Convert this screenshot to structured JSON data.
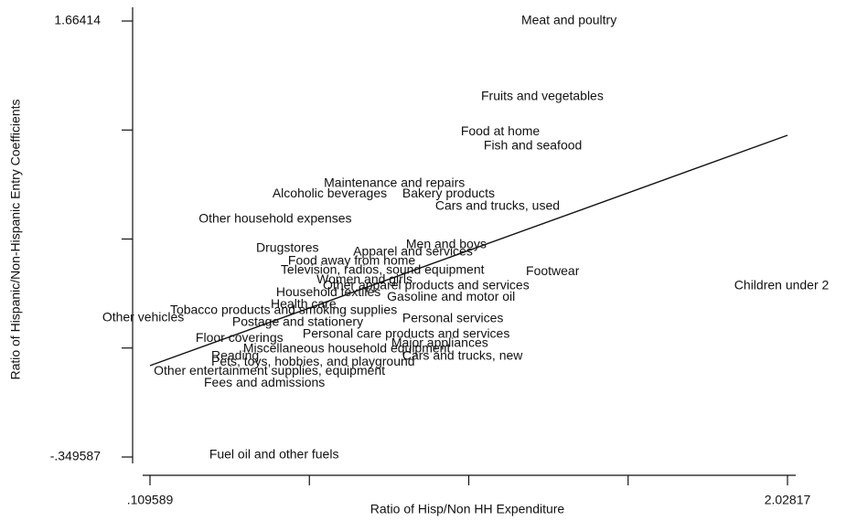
{
  "chart_data": {
    "type": "scatter",
    "x_label": "Ratio of Hisp/Non HH Expenditure",
    "y_label": "Ratio of Hispanic/Non-Hispanic Entry Coefficients",
    "xlim": [
      0.109589,
      2.02817
    ],
    "ylim": [
      -0.349587,
      1.66414
    ],
    "xticks": [
      {
        "value": 0.109589,
        "label": ".109589"
      },
      {
        "value": 0.589234,
        "label": null
      },
      {
        "value": 1.068879,
        "label": null
      },
      {
        "value": 1.548524,
        "label": null
      },
      {
        "value": 2.02817,
        "label": "2.02817"
      }
    ],
    "yticks": [
      {
        "value": -0.349587,
        "label": "-.349587"
      },
      {
        "value": 0.153845,
        "label": null
      },
      {
        "value": 0.657277,
        "label": null
      },
      {
        "value": 1.160708,
        "label": null
      },
      {
        "value": 1.66414,
        "label": "1.66414"
      }
    ],
    "labels": [
      "Meat and poultry",
      "Fruits and vegetables",
      "Food at home",
      "Fish and seafood",
      "Maintenance and repairs",
      "Alcoholic beverages",
      "Bakery products",
      "Cars and trucks, used",
      "Other household expenses",
      "Drugstores",
      "Men and boys",
      "Apparel and services",
      "Food away from home",
      "Television, radios, sound equipment",
      "Footwear",
      "Women and girls",
      "Other apparel products and services",
      "Household textiles",
      "Gasoline and motor oil",
      "Children under 2",
      "Health care",
      "Tobacco products and smoking supplies",
      "Other vehicles",
      "Postage and stationery",
      "Personal services",
      "Personal care products and services",
      "Floor coverings",
      "Major appliances",
      "Miscellaneous household equipment",
      "Cars and trucks, new",
      "Reading",
      "Pets, toys, hobbies, and playground",
      "Other entertainment supplies, equipment",
      "Fees and admissions",
      "Fuel oil and other fuels"
    ],
    "x": [
      1.227,
      1.106,
      1.045,
      1.114,
      0.633,
      0.478,
      0.869,
      0.968,
      0.256,
      0.429,
      0.88,
      0.721,
      0.525,
      0.503,
      1.241,
      0.611,
      0.63,
      0.489,
      0.823,
      1.868,
      0.473,
      0.17,
      -0.034,
      0.357,
      0.869,
      0.569,
      0.247,
      0.836,
      0.39,
      0.869,
      0.294,
      0.294,
      0.121,
      0.272,
      0.288
    ],
    "values": [
      1.664,
      1.314,
      1.153,
      1.086,
      0.913,
      0.866,
      0.866,
      0.807,
      0.748,
      0.613,
      0.63,
      0.596,
      0.554,
      0.512,
      0.507,
      0.469,
      0.44,
      0.41,
      0.389,
      0.44,
      0.355,
      0.326,
      0.292,
      0.271,
      0.288,
      0.216,
      0.199,
      0.174,
      0.149,
      0.115,
      0.115,
      0.089,
      0.047,
      -0.008,
      -0.341
    ],
    "fit": {
      "x": [
        0.109589,
        2.02817
      ],
      "values": [
        0.0726,
        1.1365
      ]
    },
    "color": "#111111"
  }
}
